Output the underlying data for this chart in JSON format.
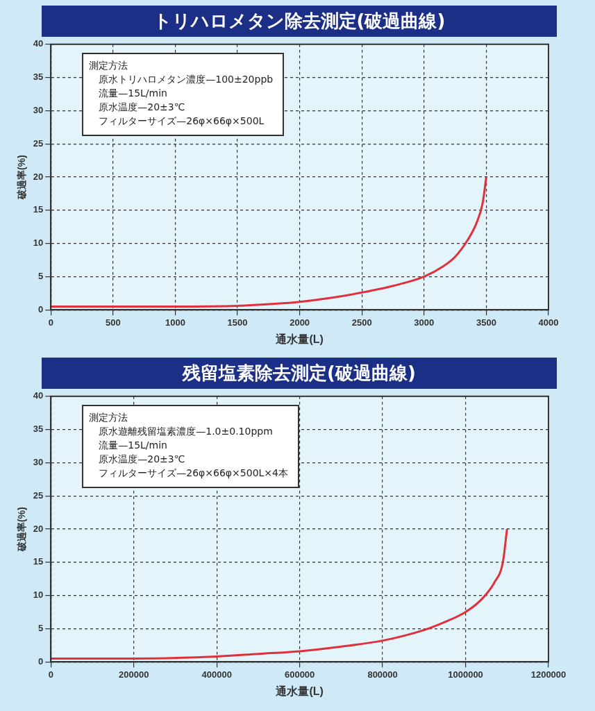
{
  "chart_data": [
    {
      "type": "line",
      "title": "トリハロメタン除去測定(破過曲線)",
      "xlabel": "通水量(L)",
      "ylabel": "破過率(%)",
      "annotations": [
        "測定方法",
        "原水トリハロメタン濃度—100±20ppb",
        "流量—15L/min",
        "原水温度—20±3℃",
        "フィルターサイズ—26φ×66φ×500L"
      ],
      "x": [
        0,
        500,
        1000,
        1500,
        1800,
        2000,
        2250,
        2500,
        2750,
        3000,
        3150,
        3250,
        3350,
        3420,
        3470,
        3500
      ],
      "series": [
        {
          "color": "#e0303c",
          "values": [
            0.5,
            0.5,
            0.5,
            0.6,
            0.9,
            1.2,
            1.8,
            2.6,
            3.6,
            5,
            6.5,
            8,
            10.5,
            13,
            16,
            20
          ]
        }
      ],
      "xlim": [
        0,
        4000
      ],
      "xticks": [
        0,
        500,
        1000,
        1500,
        2000,
        2500,
        3000,
        3500,
        4000
      ],
      "ylim": [
        0,
        40
      ],
      "yticks": [
        0,
        5,
        10,
        15,
        20,
        25,
        30,
        35,
        40
      ],
      "grid": true
    },
    {
      "type": "line",
      "title": "残留塩素除去測定(破過曲線)",
      "xlabel": "通水量(L)",
      "ylabel": "破過率(%)",
      "annotations": [
        "測定方法",
        "原水遊離残留塩素濃度—1.0±0.10ppm",
        "流量—15L/min",
        "原水温度—20±3℃",
        "フィルターサイズ—26φ×66φ×500L×4本"
      ],
      "x": [
        0,
        200000,
        400000,
        500000,
        600000,
        700000,
        800000,
        900000,
        950000,
        1000000,
        1040000,
        1070000,
        1090000,
        1100000
      ],
      "series": [
        {
          "color": "#e0303c",
          "values": [
            0.5,
            0.5,
            0.8,
            1.2,
            1.6,
            2.3,
            3.2,
            4.8,
            6,
            7.5,
            9.5,
            12,
            15,
            20
          ]
        }
      ],
      "xlim": [
        0,
        1200000
      ],
      "xticks": [
        0,
        200000,
        400000,
        600000,
        800000,
        1000000,
        1200000
      ],
      "ylim": [
        0,
        40
      ],
      "yticks": [
        0,
        5,
        10,
        15,
        20,
        25,
        30,
        35,
        40
      ],
      "grid": true
    }
  ]
}
